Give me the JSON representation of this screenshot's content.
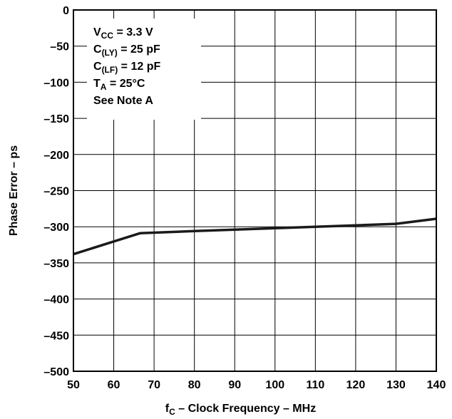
{
  "chart_data": {
    "type": "line",
    "xlabel": {
      "main": "f",
      "sub": "C",
      "rest": " – Clock Frequency – MHz"
    },
    "ylabel": "Phase Error – ps",
    "xlim": [
      50,
      140
    ],
    "ylim": [
      -500,
      0
    ],
    "x_ticks": [
      "50",
      "60",
      "70",
      "80",
      "90",
      "100",
      "110",
      "120",
      "130",
      "140"
    ],
    "y_ticks": [
      "0",
      "–50",
      "–100",
      "–150",
      "–200",
      "–250",
      "–300",
      "–350",
      "–400",
      "–450",
      "–500"
    ],
    "grid": true,
    "line_color": "#1a1a1a",
    "conditions": [
      {
        "main": "V",
        "sub": "CC",
        "rest": " = 3.3 V"
      },
      {
        "main": "C",
        "sub": "(LY)",
        "rest": " = 25 pF"
      },
      {
        "main": "C",
        "sub": "(LF)",
        "rest": " = 12 pF"
      },
      {
        "main": "T",
        "sub": "A",
        "rest": " = 25°C"
      },
      {
        "main": "See Note A",
        "sub": "",
        "rest": ""
      }
    ],
    "series": [
      {
        "x": [
          50,
          66.5,
          80,
          90,
          100,
          110,
          120,
          130,
          140
        ],
        "y": [
          -338,
          -309,
          -306,
          -304,
          -302,
          -300,
          -298,
          -296,
          -289
        ]
      }
    ]
  }
}
